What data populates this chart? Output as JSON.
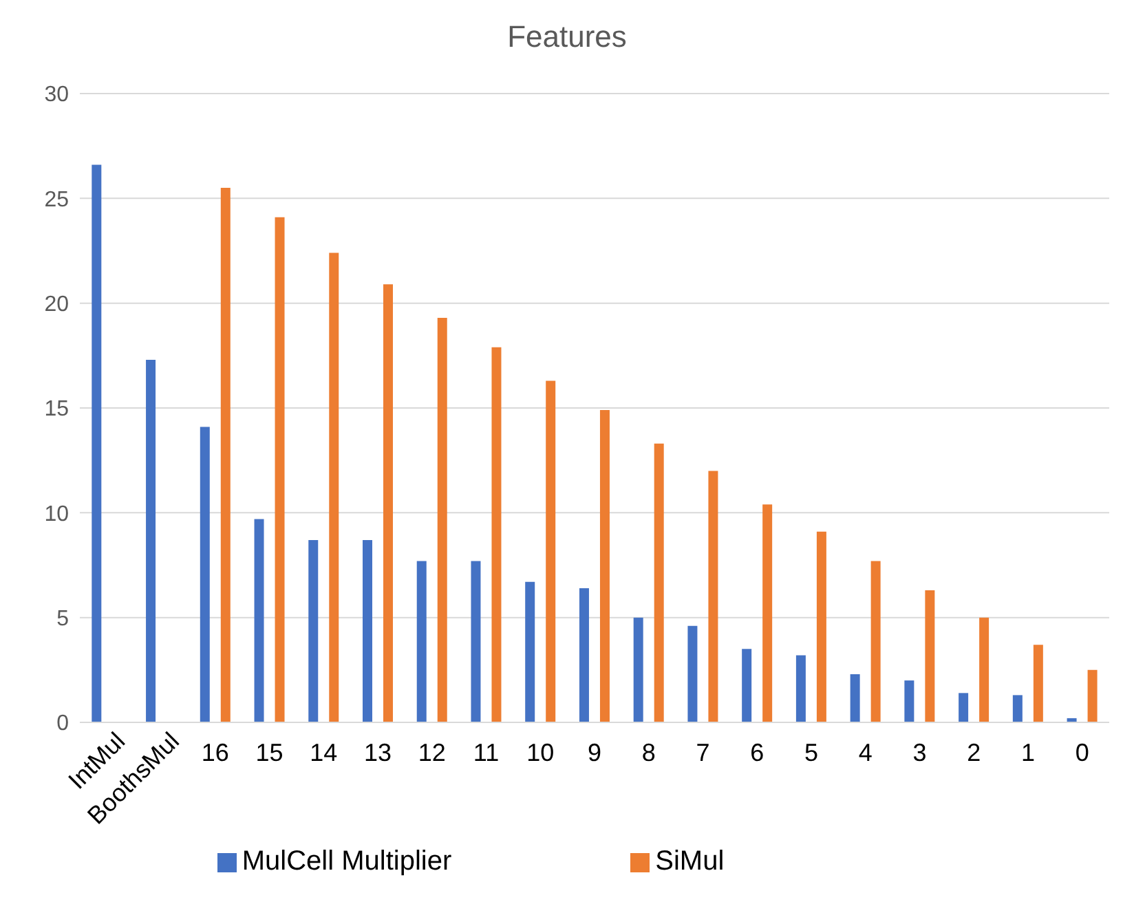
{
  "chart_data": {
    "type": "bar",
    "title": "Features",
    "categories": [
      "IntMul",
      "BoothsMul",
      "16",
      "15",
      "14",
      "13",
      "12",
      "11",
      "10",
      "9",
      "8",
      "7",
      "6",
      "5",
      "4",
      "3",
      "2",
      "1",
      "0"
    ],
    "series": [
      {
        "name": "MulCell Multiplier",
        "color": "#4472c4",
        "values": [
          26.6,
          17.3,
          14.1,
          9.7,
          8.7,
          8.7,
          7.7,
          7.7,
          6.7,
          6.4,
          5.0,
          4.6,
          3.5,
          3.2,
          2.3,
          2.0,
          1.4,
          1.3,
          0.2
        ]
      },
      {
        "name": "SiMul",
        "color": "#ed7d31",
        "values": [
          null,
          null,
          25.5,
          24.1,
          22.4,
          20.9,
          19.3,
          17.9,
          16.3,
          14.9,
          13.3,
          12.0,
          10.4,
          9.1,
          7.7,
          6.3,
          5.0,
          3.7,
          2.5
        ]
      }
    ],
    "ylim": [
      0,
      30
    ],
    "yticks": [
      0,
      5,
      10,
      15,
      20,
      25,
      30
    ],
    "grid": "y",
    "legend": "bottom"
  }
}
